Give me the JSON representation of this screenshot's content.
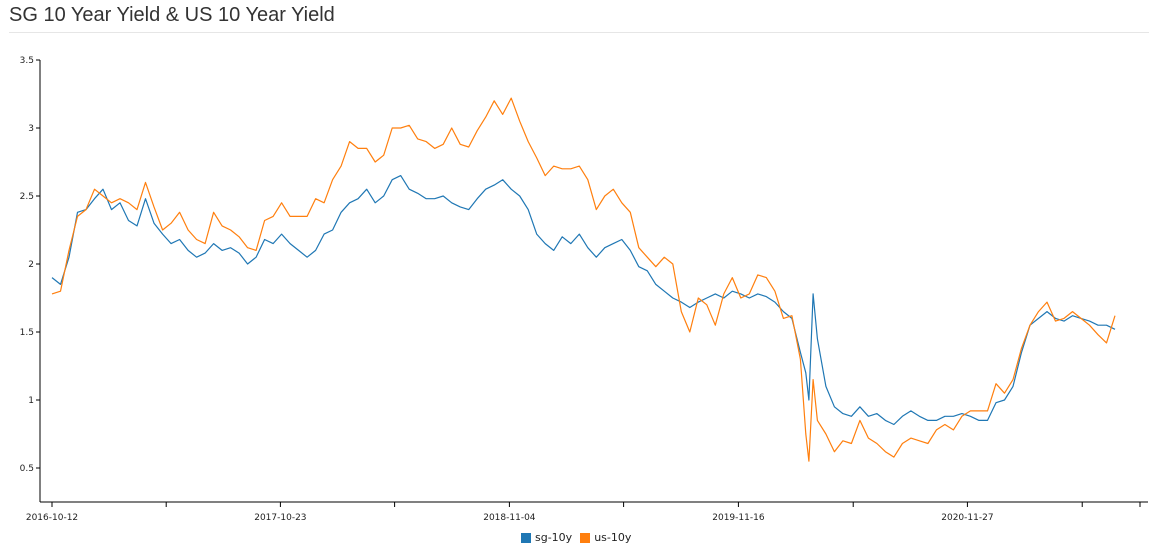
{
  "title": "SG 10 Year Yield & US 10 Year Yield",
  "colors": {
    "sg": "#1f77b4",
    "us": "#ff7f0e"
  },
  "chart_data": {
    "type": "line",
    "title": "SG 10 Year Yield & US 10 Year Yield",
    "xlabel": "",
    "ylabel": "",
    "xlim": [
      "2016-10-12",
      "2021-09-17"
    ],
    "ylim": [
      0.25,
      3.5
    ],
    "yticks": [
      0.5,
      1,
      1.5,
      2,
      2.5,
      3,
      3.5
    ],
    "yticklabels": [
      "0.5",
      "1",
      "1.5",
      "2",
      "2.5",
      "3",
      "3.5"
    ],
    "xticks": [
      "2016-10-12",
      "2017-04-18",
      "2017-10-23",
      "2018-04-29",
      "2018-11-04",
      "2019-05-11",
      "2019-11-16",
      "2020-05-23",
      "2020-11-27",
      "2021-06-04"
    ],
    "xticklabels": [
      "2016-10-12",
      "",
      "2017-10-23",
      "",
      "2018-11-04",
      "",
      "2019-11-16",
      "",
      "2020-11-27",
      ""
    ],
    "legend_position": "bottom-center",
    "grid": false,
    "series": [
      {
        "name": "sg-10y",
        "color": "#1f77b4",
        "points": [
          [
            "2016-10-12",
            1.9
          ],
          [
            "2016-10-26",
            1.85
          ],
          [
            "2016-11-09",
            2.05
          ],
          [
            "2016-11-23",
            2.38
          ],
          [
            "2016-12-07",
            2.4
          ],
          [
            "2016-12-21",
            2.48
          ],
          [
            "2017-01-04",
            2.55
          ],
          [
            "2017-01-18",
            2.4
          ],
          [
            "2017-02-01",
            2.45
          ],
          [
            "2017-02-15",
            2.32
          ],
          [
            "2017-03-01",
            2.28
          ],
          [
            "2017-03-15",
            2.48
          ],
          [
            "2017-03-29",
            2.3
          ],
          [
            "2017-04-12",
            2.22
          ],
          [
            "2017-04-26",
            2.15
          ],
          [
            "2017-05-10",
            2.18
          ],
          [
            "2017-05-24",
            2.1
          ],
          [
            "2017-06-07",
            2.05
          ],
          [
            "2017-06-21",
            2.08
          ],
          [
            "2017-07-05",
            2.15
          ],
          [
            "2017-07-19",
            2.1
          ],
          [
            "2017-08-02",
            2.12
          ],
          [
            "2017-08-16",
            2.08
          ],
          [
            "2017-08-30",
            2.0
          ],
          [
            "2017-09-13",
            2.05
          ],
          [
            "2017-09-27",
            2.18
          ],
          [
            "2017-10-11",
            2.15
          ],
          [
            "2017-10-25",
            2.22
          ],
          [
            "2017-11-08",
            2.15
          ],
          [
            "2017-11-22",
            2.1
          ],
          [
            "2017-12-06",
            2.05
          ],
          [
            "2017-12-20",
            2.1
          ],
          [
            "2018-01-03",
            2.22
          ],
          [
            "2018-01-17",
            2.25
          ],
          [
            "2018-01-31",
            2.38
          ],
          [
            "2018-02-14",
            2.45
          ],
          [
            "2018-02-28",
            2.48
          ],
          [
            "2018-03-14",
            2.55
          ],
          [
            "2018-03-28",
            2.45
          ],
          [
            "2018-04-11",
            2.5
          ],
          [
            "2018-04-25",
            2.62
          ],
          [
            "2018-05-09",
            2.65
          ],
          [
            "2018-05-23",
            2.55
          ],
          [
            "2018-06-06",
            2.52
          ],
          [
            "2018-06-20",
            2.48
          ],
          [
            "2018-07-04",
            2.48
          ],
          [
            "2018-07-18",
            2.5
          ],
          [
            "2018-08-01",
            2.45
          ],
          [
            "2018-08-15",
            2.42
          ],
          [
            "2018-08-29",
            2.4
          ],
          [
            "2018-09-12",
            2.48
          ],
          [
            "2018-09-26",
            2.55
          ],
          [
            "2018-10-10",
            2.58
          ],
          [
            "2018-10-24",
            2.62
          ],
          [
            "2018-11-07",
            2.55
          ],
          [
            "2018-11-21",
            2.5
          ],
          [
            "2018-12-05",
            2.4
          ],
          [
            "2018-12-19",
            2.22
          ],
          [
            "2019-01-02",
            2.15
          ],
          [
            "2019-01-16",
            2.1
          ],
          [
            "2019-01-30",
            2.2
          ],
          [
            "2019-02-13",
            2.15
          ],
          [
            "2019-02-27",
            2.22
          ],
          [
            "2019-03-13",
            2.12
          ],
          [
            "2019-03-27",
            2.05
          ],
          [
            "2019-04-10",
            2.12
          ],
          [
            "2019-04-24",
            2.15
          ],
          [
            "2019-05-08",
            2.18
          ],
          [
            "2019-05-22",
            2.1
          ],
          [
            "2019-06-05",
            1.98
          ],
          [
            "2019-06-19",
            1.95
          ],
          [
            "2019-07-03",
            1.85
          ],
          [
            "2019-07-17",
            1.8
          ],
          [
            "2019-07-31",
            1.75
          ],
          [
            "2019-08-14",
            1.72
          ],
          [
            "2019-08-28",
            1.68
          ],
          [
            "2019-09-11",
            1.72
          ],
          [
            "2019-09-25",
            1.75
          ],
          [
            "2019-10-09",
            1.78
          ],
          [
            "2019-10-23",
            1.75
          ],
          [
            "2019-11-06",
            1.8
          ],
          [
            "2019-11-20",
            1.78
          ],
          [
            "2019-12-04",
            1.75
          ],
          [
            "2019-12-18",
            1.78
          ],
          [
            "2020-01-01",
            1.76
          ],
          [
            "2020-01-15",
            1.72
          ],
          [
            "2020-01-29",
            1.65
          ],
          [
            "2020-02-12",
            1.6
          ],
          [
            "2020-02-26",
            1.35
          ],
          [
            "2020-03-06",
            1.2
          ],
          [
            "2020-03-11",
            1.0
          ],
          [
            "2020-03-18",
            1.78
          ],
          [
            "2020-03-25",
            1.45
          ],
          [
            "2020-04-08",
            1.1
          ],
          [
            "2020-04-22",
            0.95
          ],
          [
            "2020-05-06",
            0.9
          ],
          [
            "2020-05-20",
            0.88
          ],
          [
            "2020-06-03",
            0.95
          ],
          [
            "2020-06-17",
            0.88
          ],
          [
            "2020-07-01",
            0.9
          ],
          [
            "2020-07-15",
            0.85
          ],
          [
            "2020-07-29",
            0.82
          ],
          [
            "2020-08-12",
            0.88
          ],
          [
            "2020-08-26",
            0.92
          ],
          [
            "2020-09-09",
            0.88
          ],
          [
            "2020-09-23",
            0.85
          ],
          [
            "2020-10-07",
            0.85
          ],
          [
            "2020-10-21",
            0.88
          ],
          [
            "2020-11-04",
            0.88
          ],
          [
            "2020-11-18",
            0.9
          ],
          [
            "2020-12-02",
            0.88
          ],
          [
            "2020-12-16",
            0.85
          ],
          [
            "2020-12-30",
            0.85
          ],
          [
            "2021-01-13",
            0.98
          ],
          [
            "2021-01-27",
            1.0
          ],
          [
            "2021-02-10",
            1.1
          ],
          [
            "2021-02-24",
            1.35
          ],
          [
            "2021-03-10",
            1.55
          ],
          [
            "2021-03-24",
            1.6
          ],
          [
            "2021-04-07",
            1.65
          ],
          [
            "2021-04-21",
            1.6
          ],
          [
            "2021-05-05",
            1.58
          ],
          [
            "2021-05-19",
            1.62
          ],
          [
            "2021-06-02",
            1.6
          ],
          [
            "2021-06-16",
            1.58
          ],
          [
            "2021-06-30",
            1.55
          ],
          [
            "2021-07-14",
            1.55
          ],
          [
            "2021-07-28",
            1.52
          ]
        ]
      },
      {
        "name": "us-10y",
        "color": "#ff7f0e",
        "points": [
          [
            "2016-10-12",
            1.78
          ],
          [
            "2016-10-26",
            1.8
          ],
          [
            "2016-11-09",
            2.1
          ],
          [
            "2016-11-23",
            2.35
          ],
          [
            "2016-12-07",
            2.4
          ],
          [
            "2016-12-21",
            2.55
          ],
          [
            "2017-01-04",
            2.5
          ],
          [
            "2017-01-18",
            2.45
          ],
          [
            "2017-02-01",
            2.48
          ],
          [
            "2017-02-15",
            2.45
          ],
          [
            "2017-03-01",
            2.4
          ],
          [
            "2017-03-15",
            2.6
          ],
          [
            "2017-03-29",
            2.42
          ],
          [
            "2017-04-12",
            2.25
          ],
          [
            "2017-04-26",
            2.3
          ],
          [
            "2017-05-10",
            2.38
          ],
          [
            "2017-05-24",
            2.25
          ],
          [
            "2017-06-07",
            2.18
          ],
          [
            "2017-06-21",
            2.15
          ],
          [
            "2017-07-05",
            2.38
          ],
          [
            "2017-07-19",
            2.28
          ],
          [
            "2017-08-02",
            2.25
          ],
          [
            "2017-08-16",
            2.2
          ],
          [
            "2017-08-30",
            2.12
          ],
          [
            "2017-09-13",
            2.1
          ],
          [
            "2017-09-27",
            2.32
          ],
          [
            "2017-10-11",
            2.35
          ],
          [
            "2017-10-25",
            2.45
          ],
          [
            "2017-11-08",
            2.35
          ],
          [
            "2017-11-22",
            2.35
          ],
          [
            "2017-12-06",
            2.35
          ],
          [
            "2017-12-20",
            2.48
          ],
          [
            "2018-01-03",
            2.45
          ],
          [
            "2018-01-17",
            2.62
          ],
          [
            "2018-01-31",
            2.72
          ],
          [
            "2018-02-14",
            2.9
          ],
          [
            "2018-02-28",
            2.85
          ],
          [
            "2018-03-14",
            2.85
          ],
          [
            "2018-03-28",
            2.75
          ],
          [
            "2018-04-11",
            2.8
          ],
          [
            "2018-04-25",
            3.0
          ],
          [
            "2018-05-09",
            3.0
          ],
          [
            "2018-05-23",
            3.02
          ],
          [
            "2018-06-06",
            2.92
          ],
          [
            "2018-06-20",
            2.9
          ],
          [
            "2018-07-04",
            2.85
          ],
          [
            "2018-07-18",
            2.88
          ],
          [
            "2018-08-01",
            3.0
          ],
          [
            "2018-08-15",
            2.88
          ],
          [
            "2018-08-29",
            2.86
          ],
          [
            "2018-09-12",
            2.98
          ],
          [
            "2018-09-26",
            3.08
          ],
          [
            "2018-10-10",
            3.2
          ],
          [
            "2018-10-24",
            3.1
          ],
          [
            "2018-11-07",
            3.22
          ],
          [
            "2018-11-21",
            3.05
          ],
          [
            "2018-12-05",
            2.9
          ],
          [
            "2018-12-19",
            2.78
          ],
          [
            "2019-01-02",
            2.65
          ],
          [
            "2019-01-16",
            2.72
          ],
          [
            "2019-01-30",
            2.7
          ],
          [
            "2019-02-13",
            2.7
          ],
          [
            "2019-02-27",
            2.72
          ],
          [
            "2019-03-13",
            2.62
          ],
          [
            "2019-03-27",
            2.4
          ],
          [
            "2019-04-10",
            2.5
          ],
          [
            "2019-04-24",
            2.55
          ],
          [
            "2019-05-08",
            2.45
          ],
          [
            "2019-05-22",
            2.38
          ],
          [
            "2019-06-05",
            2.12
          ],
          [
            "2019-06-19",
            2.05
          ],
          [
            "2019-07-03",
            1.98
          ],
          [
            "2019-07-17",
            2.05
          ],
          [
            "2019-07-31",
            2.0
          ],
          [
            "2019-08-14",
            1.65
          ],
          [
            "2019-08-28",
            1.5
          ],
          [
            "2019-09-11",
            1.75
          ],
          [
            "2019-09-25",
            1.7
          ],
          [
            "2019-10-09",
            1.55
          ],
          [
            "2019-10-23",
            1.78
          ],
          [
            "2019-11-06",
            1.9
          ],
          [
            "2019-11-20",
            1.75
          ],
          [
            "2019-12-04",
            1.78
          ],
          [
            "2019-12-18",
            1.92
          ],
          [
            "2020-01-01",
            1.9
          ],
          [
            "2020-01-15",
            1.8
          ],
          [
            "2020-01-29",
            1.6
          ],
          [
            "2020-02-12",
            1.62
          ],
          [
            "2020-02-26",
            1.3
          ],
          [
            "2020-03-06",
            0.75
          ],
          [
            "2020-03-11",
            0.55
          ],
          [
            "2020-03-18",
            1.15
          ],
          [
            "2020-03-25",
            0.85
          ],
          [
            "2020-04-08",
            0.75
          ],
          [
            "2020-04-22",
            0.62
          ],
          [
            "2020-05-06",
            0.7
          ],
          [
            "2020-05-20",
            0.68
          ],
          [
            "2020-06-03",
            0.85
          ],
          [
            "2020-06-17",
            0.72
          ],
          [
            "2020-07-01",
            0.68
          ],
          [
            "2020-07-15",
            0.62
          ],
          [
            "2020-07-29",
            0.58
          ],
          [
            "2020-08-12",
            0.68
          ],
          [
            "2020-08-26",
            0.72
          ],
          [
            "2020-09-09",
            0.7
          ],
          [
            "2020-09-23",
            0.68
          ],
          [
            "2020-10-07",
            0.78
          ],
          [
            "2020-10-21",
            0.82
          ],
          [
            "2020-11-04",
            0.78
          ],
          [
            "2020-11-18",
            0.88
          ],
          [
            "2020-12-02",
            0.92
          ],
          [
            "2020-12-16",
            0.92
          ],
          [
            "2020-12-30",
            0.92
          ],
          [
            "2021-01-13",
            1.12
          ],
          [
            "2021-01-27",
            1.05
          ],
          [
            "2021-02-10",
            1.15
          ],
          [
            "2021-02-24",
            1.38
          ],
          [
            "2021-03-10",
            1.55
          ],
          [
            "2021-03-24",
            1.65
          ],
          [
            "2021-04-07",
            1.72
          ],
          [
            "2021-04-21",
            1.58
          ],
          [
            "2021-05-05",
            1.6
          ],
          [
            "2021-05-19",
            1.65
          ],
          [
            "2021-06-02",
            1.6
          ],
          [
            "2021-06-16",
            1.55
          ],
          [
            "2021-06-30",
            1.48
          ],
          [
            "2021-07-14",
            1.42
          ],
          [
            "2021-07-28",
            1.62
          ]
        ]
      }
    ]
  }
}
